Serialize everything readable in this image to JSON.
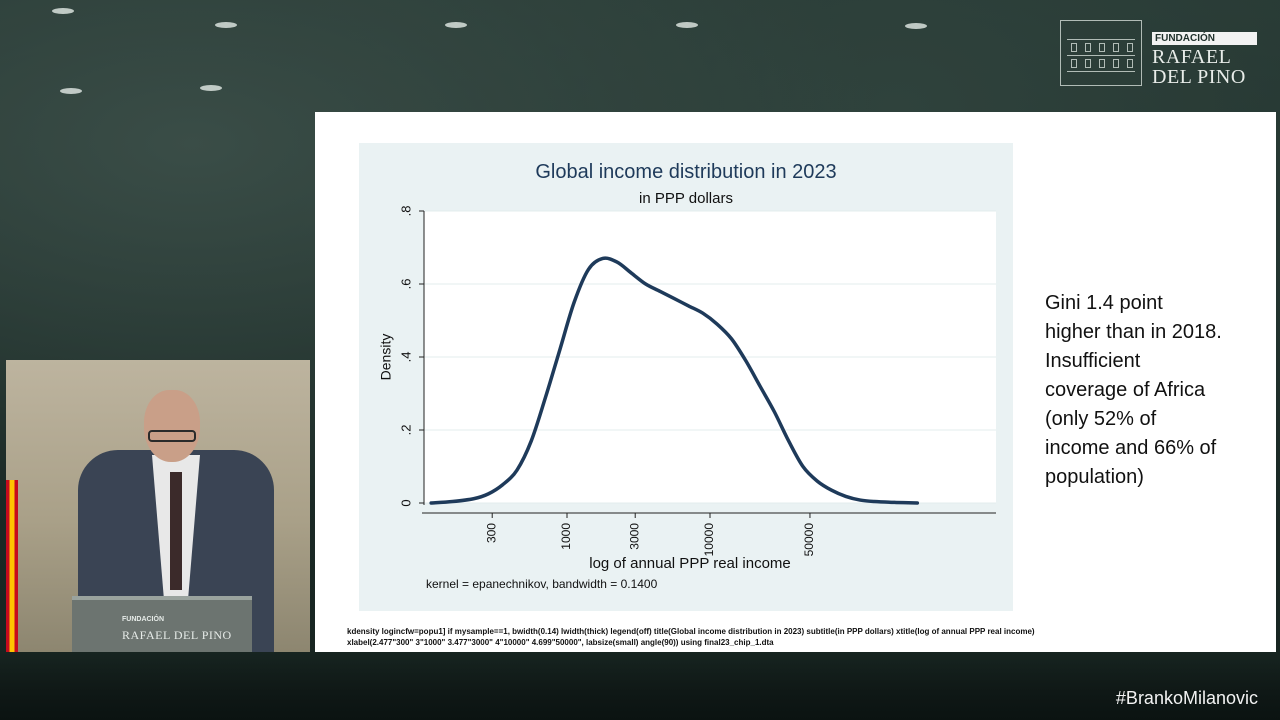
{
  "logo": {
    "fundacion": "FUNDACIÓN",
    "line1": "RAFAEL",
    "line2": "DEL PINO"
  },
  "chart_data": {
    "type": "area",
    "title": "Global income distribution in 2023",
    "subtitle": "in PPP dollars",
    "xlabel": "log of annual PPP real income",
    "ylabel": "Density",
    "x_scale": "log",
    "xlim": [
      2.0,
      6.0
    ],
    "ylim": [
      0,
      0.8
    ],
    "y_ticks": [
      {
        "value": 0,
        "label": "0"
      },
      {
        "value": 0.2,
        "label": ".2"
      },
      {
        "value": 0.4,
        "label": ".4"
      },
      {
        "value": 0.6,
        "label": ".6"
      },
      {
        "value": 0.8,
        "label": ".8"
      }
    ],
    "x_ticks": [
      {
        "value": 2.477,
        "label": "300"
      },
      {
        "value": 3.0,
        "label": "1000"
      },
      {
        "value": 3.477,
        "label": "3000"
      },
      {
        "value": 4.0,
        "label": "10000"
      },
      {
        "value": 4.699,
        "label": "50000"
      }
    ],
    "grid": true,
    "legend": "off",
    "line_color": "#1e3a5a",
    "series": [
      {
        "x": [
          2.05,
          2.2,
          2.35,
          2.45,
          2.55,
          2.65,
          2.75,
          2.85,
          2.95,
          3.05,
          3.15,
          3.25,
          3.35,
          3.45,
          3.55,
          3.65,
          3.75,
          3.85,
          3.95,
          4.05,
          4.15,
          4.25,
          4.35,
          4.45,
          4.55,
          4.65,
          4.75,
          4.85,
          4.95,
          5.05,
          5.15,
          5.3,
          5.45
        ],
        "values": [
          0.0,
          0.004,
          0.012,
          0.025,
          0.05,
          0.09,
          0.17,
          0.29,
          0.42,
          0.55,
          0.64,
          0.67,
          0.66,
          0.63,
          0.6,
          0.58,
          0.56,
          0.54,
          0.52,
          0.49,
          0.45,
          0.39,
          0.32,
          0.25,
          0.17,
          0.1,
          0.06,
          0.035,
          0.018,
          0.008,
          0.004,
          0.0015,
          0.0
        ]
      }
    ]
  },
  "chart": {
    "kernel_note": "kernel = epanechnikov, bandwidth = 0.1400"
  },
  "slide": {
    "code_note": "kdensity logincfw=popu1] if mysample==1, bwidth(0.14) lwidth(thick) legend(off) title(Global income distribution in 2023) subtitle(in PPP dollars) xtitle(log of annual PPP real income) xlabel(2.477\"300\" 3\"1000\"   3.477\"3000\"   4\"10000\" 4.699\"50000\", labsize(small) angle(90)) using final23_chip_1.dta",
    "side_lines": [
      "Gini 1.4 point",
      "higher than in 2018.",
      "Insufficient",
      "coverage of Africa",
      "(only 52% of",
      "income and 66% of",
      "population)"
    ]
  },
  "lectern": {
    "fundacion": "FUNDACIÓN",
    "name": "RAFAEL DEL PINO"
  },
  "hashtag": "#BrankoMilanovic"
}
